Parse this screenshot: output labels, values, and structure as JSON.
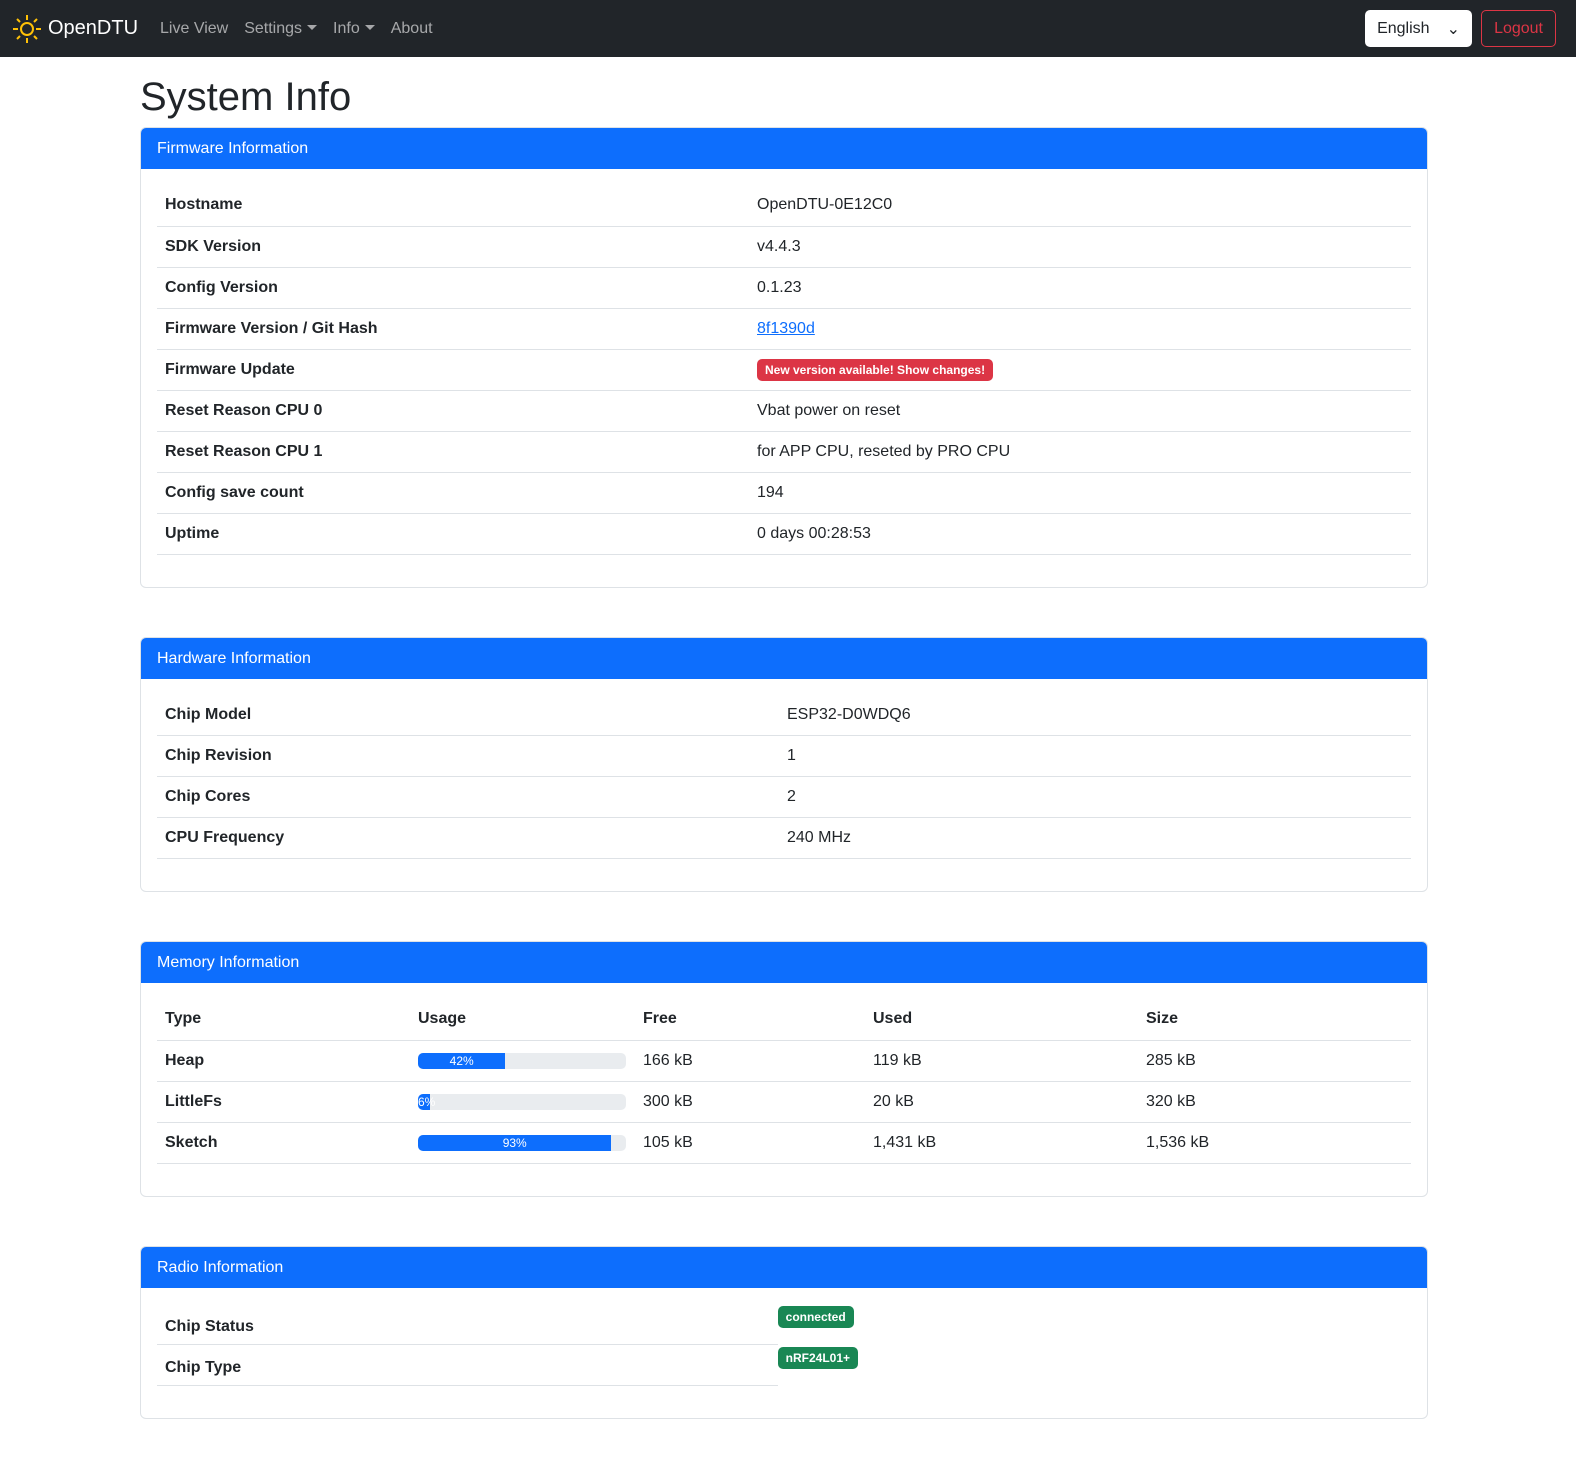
{
  "nav": {
    "brand": "OpenDTU",
    "items": [
      "Live View",
      "Settings",
      "Info",
      "About"
    ],
    "language": "English",
    "logout": "Logout"
  },
  "page_title": "System Info",
  "firmware": {
    "title": "Firmware Information",
    "rows": [
      [
        "Hostname",
        "OpenDTU-0E12C0"
      ],
      [
        "SDK Version",
        "v4.4.3"
      ],
      [
        "Config Version",
        "0.1.23"
      ],
      [
        "Firmware Version / Git Hash",
        "8f1390d"
      ],
      [
        "Firmware Update",
        "New version available! Show changes!"
      ],
      [
        "Reset Reason CPU 0",
        "Vbat power on reset"
      ],
      [
        "Reset Reason CPU 1",
        "for APP CPU, reseted by PRO CPU"
      ],
      [
        "Config save count",
        "194"
      ],
      [
        "Uptime",
        "0 days 00:28:53"
      ]
    ]
  },
  "hardware": {
    "title": "Hardware Information",
    "rows": [
      [
        "Chip Model",
        "ESP32-D0WDQ6"
      ],
      [
        "Chip Revision",
        "1"
      ],
      [
        "Chip Cores",
        "2"
      ],
      [
        "CPU Frequency",
        "240 MHz"
      ]
    ]
  },
  "memory": {
    "title": "Memory Information",
    "headers": [
      "Type",
      "Usage",
      "Free",
      "Used",
      "Size"
    ],
    "rows": [
      {
        "type": "Heap",
        "usage": 42,
        "usage_label": "42%",
        "free": "166 kB",
        "used": "119 kB",
        "size": "285 kB"
      },
      {
        "type": "LittleFs",
        "usage": 6,
        "usage_label": "6%",
        "free": "300 kB",
        "used": "20 kB",
        "size": "320 kB"
      },
      {
        "type": "Sketch",
        "usage": 93,
        "usage_label": "93%",
        "free": "105 kB",
        "used": "1,431 kB",
        "size": "1,536 kB"
      }
    ]
  },
  "radio": {
    "title": "Radio Information",
    "rows": [
      [
        "Chip Status",
        "connected"
      ],
      [
        "Chip Type",
        "nRF24L01+"
      ]
    ]
  },
  "colors": {
    "primary": "#0d6efd",
    "danger": "#dc3545",
    "success": "#198754",
    "navbar": "#212529"
  }
}
